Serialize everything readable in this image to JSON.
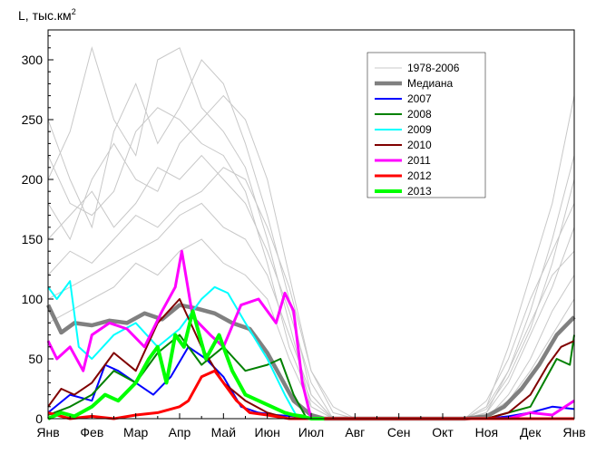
{
  "chart_data": {
    "type": "line",
    "ylabel_main": "L, тыс.км",
    "ylabel_sup": "2",
    "xlabel": "",
    "ylim": [
      0,
      325
    ],
    "yticks": [
      0,
      50,
      100,
      150,
      200,
      250,
      300
    ],
    "xlim": [
      0,
      12
    ],
    "month_ticks": [
      "Янв",
      "Фев",
      "Мар",
      "Апр",
      "Май",
      "Июн",
      "Июл",
      "Авг",
      "Сен",
      "Окт",
      "Ноя",
      "Дек",
      "Янв"
    ],
    "grid": false,
    "legend_position": "top-right",
    "legend": [
      {
        "label": "1978-2006",
        "color": "#c8c8c8"
      },
      {
        "label": "Медиана",
        "color": "#808080"
      },
      {
        "label": "2007",
        "color": "#0000ff"
      },
      {
        "label": "2008",
        "color": "#008000"
      },
      {
        "label": "2009",
        "color": "#00ffff"
      },
      {
        "label": "2010",
        "color": "#800000"
      },
      {
        "label": "2011",
        "color": "#ff00ff"
      },
      {
        "label": "2012",
        "color": "#ff0000"
      },
      {
        "label": "2013",
        "color": "#00ff00"
      }
    ],
    "historical_envelope": {
      "name": "1978-2006",
      "color": "#c8c8c8",
      "lines": [
        {
          "x": [
            0,
            0.5,
            1,
            1.5,
            2,
            2.5,
            3,
            3.5,
            4,
            4.5,
            5,
            5.5,
            6,
            6.5,
            7,
            9.5,
            10,
            10.5,
            11,
            11.5,
            12
          ],
          "y": [
            250,
            200,
            160,
            240,
            280,
            230,
            260,
            300,
            280,
            230,
            170,
            100,
            20,
            0,
            0,
            0,
            10,
            60,
            120,
            180,
            270
          ]
        },
        {
          "x": [
            0,
            0.5,
            1,
            1.5,
            2,
            2.5,
            3,
            3.5,
            4,
            4.5,
            5,
            5.5,
            6,
            6.5,
            7,
            9.5,
            10,
            10.5,
            11,
            11.5,
            12
          ],
          "y": [
            200,
            240,
            310,
            250,
            220,
            300,
            310,
            260,
            240,
            210,
            150,
            80,
            10,
            0,
            0,
            0,
            5,
            40,
            90,
            150,
            220
          ]
        },
        {
          "x": [
            0,
            0.5,
            1,
            1.5,
            2,
            2.5,
            3,
            3.5,
            4,
            4.5,
            5,
            5.5,
            6,
            6.5,
            7,
            9.5,
            10,
            10.5,
            11,
            11.5,
            12
          ],
          "y": [
            180,
            150,
            200,
            230,
            200,
            190,
            230,
            250,
            270,
            250,
            200,
            120,
            40,
            5,
            0,
            0,
            15,
            50,
            100,
            140,
            180
          ]
        },
        {
          "x": [
            0,
            0.5,
            1,
            1.5,
            2,
            2.5,
            3,
            3.5,
            4,
            4.5,
            5,
            5.5,
            6,
            6.5,
            7,
            9.5,
            10,
            10.5,
            11,
            11.5,
            12
          ],
          "y": [
            150,
            170,
            190,
            160,
            180,
            210,
            200,
            220,
            200,
            180,
            140,
            90,
            30,
            0,
            0,
            0,
            5,
            30,
            70,
            110,
            160
          ]
        },
        {
          "x": [
            0,
            0.5,
            1,
            1.5,
            2,
            2.5,
            3,
            3.5,
            4,
            4.5,
            5,
            5.5,
            6,
            6.5,
            7,
            9.5,
            10,
            10.5,
            11,
            11.5,
            12
          ],
          "y": [
            120,
            140,
            130,
            150,
            170,
            160,
            180,
            190,
            210,
            200,
            160,
            110,
            40,
            10,
            0,
            0,
            10,
            40,
            80,
            120,
            140
          ]
        },
        {
          "x": [
            0,
            0.5,
            1,
            1.5,
            2,
            2.5,
            3,
            3.5,
            4,
            4.5,
            5,
            5.5,
            6,
            6.5,
            7,
            9.5,
            10,
            10.5,
            11,
            11.5,
            12
          ],
          "y": [
            100,
            110,
            120,
            130,
            140,
            150,
            170,
            180,
            160,
            150,
            120,
            70,
            20,
            0,
            0,
            0,
            0,
            20,
            50,
            90,
            120
          ]
        },
        {
          "x": [
            0,
            0.5,
            1,
            1.5,
            2,
            2.5,
            3,
            3.5,
            4,
            4.5,
            5,
            5.5,
            6,
            6.5,
            7,
            9.5,
            10,
            10.5,
            11,
            11.5,
            12
          ],
          "y": [
            220,
            180,
            170,
            190,
            240,
            260,
            250,
            230,
            220,
            190,
            130,
            60,
            15,
            0,
            0,
            0,
            8,
            35,
            75,
            130,
            200
          ]
        },
        {
          "x": [
            0,
            0.5,
            1,
            1.5,
            2,
            2.5,
            3,
            3.5,
            4,
            4.5,
            5,
            5.5,
            6,
            6.5,
            7,
            9.5,
            10,
            10.5,
            11,
            11.5,
            12
          ],
          "y": [
            80,
            90,
            100,
            110,
            130,
            120,
            140,
            150,
            130,
            120,
            100,
            50,
            10,
            0,
            0,
            0,
            3,
            15,
            40,
            70,
            100
          ]
        }
      ]
    },
    "series": [
      {
        "name": "Медиана",
        "color": "#808080",
        "width": 4.5,
        "x": [
          0,
          0.3,
          0.6,
          1,
          1.4,
          1.8,
          2.2,
          2.6,
          3,
          3.4,
          3.8,
          4.2,
          4.6,
          5,
          5.3,
          5.6,
          6,
          6.3,
          6.6,
          9.5,
          10,
          10.4,
          10.8,
          11.2,
          11.6,
          12
        ],
        "y": [
          95,
          72,
          80,
          78,
          82,
          80,
          88,
          83,
          95,
          92,
          88,
          80,
          75,
          55,
          35,
          15,
          3,
          0,
          0,
          0,
          2,
          10,
          25,
          45,
          70,
          85
        ]
      },
      {
        "name": "2007",
        "color": "#0000ff",
        "width": 2,
        "x": [
          0,
          0.5,
          1,
          1.3,
          1.6,
          2,
          2.4,
          2.8,
          3.2,
          3.6,
          4,
          4.4,
          4.8,
          5.2,
          5.6,
          5.9,
          10,
          10.5,
          11,
          11.5,
          12
        ],
        "y": [
          5,
          20,
          15,
          45,
          40,
          30,
          20,
          35,
          60,
          50,
          35,
          10,
          5,
          3,
          2,
          0,
          0,
          2,
          5,
          10,
          8
        ]
      },
      {
        "name": "2008",
        "color": "#008000",
        "width": 2,
        "x": [
          0,
          0.5,
          1,
          1.5,
          2,
          2.5,
          3,
          3.5,
          4,
          4.5,
          5,
          5.3,
          5.6,
          5.9,
          10,
          10.5,
          11,
          11.3,
          11.6,
          11.9,
          12
        ],
        "y": [
          3,
          10,
          20,
          40,
          30,
          55,
          70,
          45,
          60,
          40,
          45,
          50,
          20,
          0,
          0,
          5,
          10,
          30,
          50,
          45,
          70
        ]
      },
      {
        "name": "2009",
        "color": "#00ffff",
        "width": 2,
        "x": [
          0,
          0.2,
          0.5,
          0.7,
          1,
          1.5,
          2,
          2.5,
          3,
          3.5,
          3.8,
          4.1,
          4.5,
          5,
          5.4,
          5.7,
          10
        ],
        "y": [
          110,
          100,
          115,
          60,
          50,
          70,
          80,
          60,
          75,
          100,
          110,
          105,
          80,
          50,
          20,
          0,
          0
        ]
      },
      {
        "name": "2010",
        "color": "#800000",
        "width": 2,
        "x": [
          0,
          0.3,
          0.6,
          1,
          1.5,
          2,
          2.5,
          3,
          3.5,
          4,
          4.5,
          5,
          5.5,
          10,
          10.5,
          11,
          11.4,
          11.7,
          12
        ],
        "y": [
          10,
          25,
          20,
          30,
          55,
          40,
          80,
          100,
          60,
          30,
          15,
          5,
          0,
          0,
          5,
          20,
          45,
          60,
          65
        ]
      },
      {
        "name": "2011",
        "color": "#ff00ff",
        "width": 3,
        "x": [
          0,
          0.2,
          0.5,
          0.8,
          1,
          1.4,
          1.8,
          2.2,
          2.6,
          2.9,
          3.05,
          3.3,
          3.7,
          4,
          4.4,
          4.8,
          5.2,
          5.4,
          5.6,
          5.8,
          6,
          10,
          10.5,
          11,
          11.5,
          12
        ],
        "y": [
          65,
          50,
          60,
          40,
          70,
          80,
          75,
          60,
          90,
          110,
          140,
          85,
          70,
          60,
          95,
          100,
          80,
          105,
          90,
          30,
          0,
          0,
          0,
          5,
          3,
          15
        ]
      },
      {
        "name": "2012",
        "color": "#ff0000",
        "width": 3,
        "x": [
          0,
          0.5,
          1,
          1.5,
          2,
          2.5,
          3,
          3.2,
          3.5,
          3.8,
          4,
          4.3,
          4.6,
          5,
          5.5,
          6,
          10,
          11,
          12
        ],
        "y": [
          5,
          0,
          2,
          0,
          3,
          5,
          10,
          15,
          35,
          40,
          30,
          15,
          5,
          3,
          0,
          0,
          0,
          0,
          0
        ]
      },
      {
        "name": "2013",
        "color": "#00ff00",
        "width": 4,
        "x": [
          0,
          0.3,
          0.6,
          1,
          1.3,
          1.6,
          2,
          2.3,
          2.5,
          2.7,
          2.9,
          3.1,
          3.3,
          3.6,
          3.9,
          4.2,
          4.5,
          4.8,
          5.1,
          5.4,
          5.6,
          5.8,
          6,
          6.3
        ],
        "y": [
          0,
          5,
          2,
          10,
          20,
          15,
          30,
          50,
          60,
          30,
          70,
          60,
          90,
          50,
          70,
          40,
          20,
          15,
          10,
          5,
          3,
          2,
          0,
          0
        ]
      }
    ]
  }
}
